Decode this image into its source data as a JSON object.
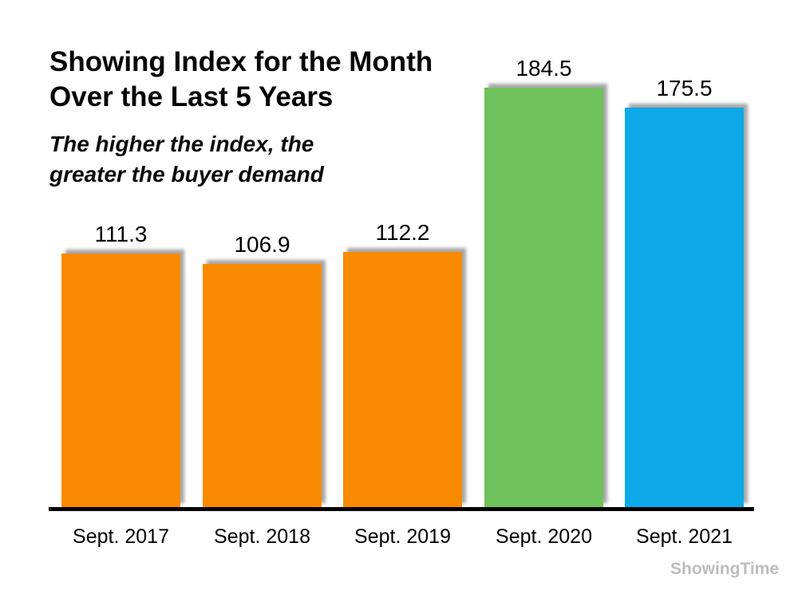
{
  "title": {
    "lines": [
      "Showing Index for the Month",
      "Over the Last 5 Years"
    ]
  },
  "subtitle": {
    "lines": [
      "The higher the index, the",
      "greater the buyer demand"
    ]
  },
  "watermark": "ShowingTime",
  "colors": {
    "orange": "#FA8A00",
    "green": "#6FC25B",
    "blue": "#0EA9E9",
    "axis": "#000000",
    "watermark_gray": "#BDBDBD"
  },
  "chart_data": {
    "type": "bar",
    "title": "Showing Index for the Month Over the Last 5 Years",
    "subtitle": "The higher the index, the greater the buyer demand",
    "categories": [
      "Sept. 2017",
      "Sept. 2018",
      "Sept. 2019",
      "Sept. 2020",
      "Sept. 2021"
    ],
    "values": [
      111.3,
      106.9,
      112.2,
      184.5,
      175.5
    ],
    "data_labels": [
      "111.3",
      "106.9",
      "112.2",
      "184.5",
      "175.5"
    ],
    "bar_colors": [
      "#FA8A00",
      "#FA8A00",
      "#FA8A00",
      "#6FC25B",
      "#0EA9E9"
    ],
    "xlabel": "",
    "ylabel": "",
    "ylim": [
      0,
      200
    ],
    "grid": false,
    "legend": false,
    "value_labels_shown": true
  }
}
